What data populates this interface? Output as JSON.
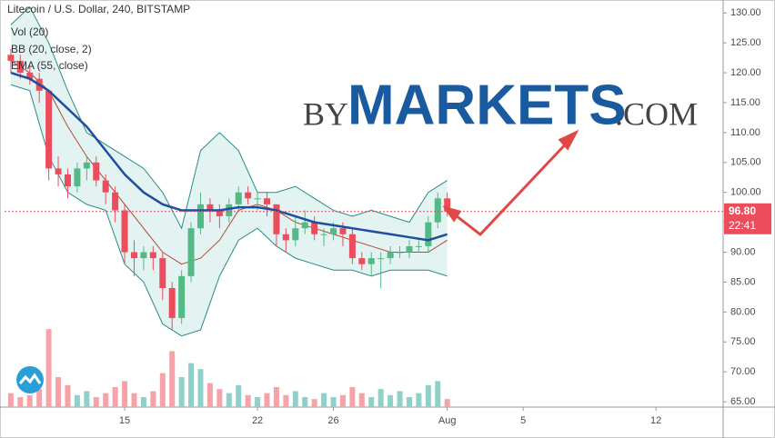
{
  "chart_data": {
    "type": "candlestick",
    "title": "Litecoin / U.S. Dollar, 240, BITSTAMP",
    "x": [
      9,
      9.5,
      10,
      10.5,
      11,
      11.5,
      12,
      12.5,
      13,
      13.5,
      14,
      14.5,
      15,
      15.5,
      16,
      16.5,
      17,
      17.5,
      18,
      18.5,
      19,
      19.5,
      20,
      20.5,
      21,
      21.5,
      22,
      22.5,
      23,
      23.5,
      24,
      24.5,
      25,
      25.5,
      26,
      26.5,
      27,
      27.5,
      28,
      28.5,
      29,
      29.5,
      30,
      30.5,
      31,
      31.5,
      32
    ],
    "open": [
      123,
      122,
      120,
      119,
      117,
      104,
      103,
      101,
      104,
      105,
      102,
      100,
      97,
      90,
      89,
      90,
      89,
      84,
      79,
      86,
      94,
      98,
      97,
      96,
      98,
      100,
      99,
      99,
      98,
      93,
      92,
      94,
      95,
      93,
      93,
      94,
      93,
      89,
      88,
      89,
      89,
      90,
      90,
      91,
      91,
      95,
      99
    ],
    "high": [
      124,
      123,
      121,
      120,
      117,
      106,
      104,
      105,
      106,
      106,
      103,
      101,
      98,
      92,
      91,
      91,
      90,
      85,
      87,
      95,
      100,
      99,
      98,
      99,
      101,
      101,
      100,
      100,
      98,
      94,
      96,
      97,
      96,
      94,
      95,
      95,
      94,
      90,
      90,
      90,
      91,
      91,
      92,
      92,
      96,
      100,
      100
    ],
    "low": [
      120,
      119,
      118,
      115,
      102,
      101,
      99,
      100,
      102,
      101,
      98,
      95,
      88,
      86,
      87,
      87,
      82,
      77,
      78,
      85,
      93,
      95,
      94,
      95,
      97,
      98,
      97,
      96,
      91,
      90,
      91,
      93,
      92,
      91,
      92,
      91,
      88,
      87,
      86,
      84,
      88,
      89,
      89,
      90,
      90,
      94,
      96
    ],
    "close": [
      122,
      120,
      119,
      117,
      104,
      103,
      101,
      104,
      105,
      102,
      100,
      97,
      90,
      89,
      90,
      89,
      84,
      79,
      86,
      94,
      98,
      97,
      96,
      98,
      100,
      99,
      99,
      98,
      93,
      92,
      94,
      95,
      93,
      93,
      94,
      93,
      89,
      88,
      89,
      89,
      90,
      90,
      91,
      91,
      95,
      99,
      96.8
    ],
    "up_color": "#53b987",
    "down_color": "#eb4d5c",
    "volume": {
      "name": "Vol (20)",
      "values": [
        14,
        10,
        12,
        18,
        78,
        30,
        22,
        12,
        16,
        10,
        14,
        20,
        26,
        14,
        10,
        16,
        34,
        56,
        30,
        44,
        38,
        24,
        18,
        14,
        22,
        12,
        10,
        14,
        20,
        12,
        16,
        10,
        8,
        14,
        10,
        12,
        20,
        14,
        10,
        18,
        12,
        16,
        10,
        14,
        22,
        26,
        8
      ],
      "ylim": [
        0,
        100
      ],
      "up_color": "#8fd0c8",
      "down_color": "#f5a3a8"
    },
    "bb": {
      "name": "BB (20, close, 2)",
      "x": [
        9,
        10,
        11,
        12,
        13,
        14,
        15,
        16,
        17,
        18,
        19,
        20,
        21,
        22,
        23,
        24,
        25,
        26,
        27,
        28,
        29,
        30,
        31,
        32
      ],
      "upper": [
        128,
        131,
        125,
        117,
        110,
        108,
        106,
        104,
        100,
        94,
        107,
        110,
        107,
        100,
        100,
        101,
        99,
        97,
        96,
        97,
        96,
        95,
        100,
        102
      ],
      "basis": [
        122,
        120,
        117,
        111,
        106,
        102,
        98,
        94,
        90,
        88,
        89,
        92,
        97,
        98,
        97,
        95,
        94,
        93,
        92,
        91,
        90,
        90,
        90,
        92
      ],
      "lower": [
        118,
        117,
        106,
        100,
        98,
        97,
        88,
        85,
        78,
        76,
        77,
        86,
        92,
        94,
        91,
        89,
        88,
        87,
        87,
        86,
        87,
        87,
        87,
        86
      ],
      "color": "#2a8a8a",
      "basis_color": "#b04a3a",
      "fill": "#e3f3f1"
    },
    "ema": {
      "name": "EMA (55, close)",
      "x": [
        9,
        10,
        11,
        12,
        13,
        14,
        15,
        16,
        17,
        18,
        19,
        20,
        21,
        22,
        23,
        24,
        25,
        26,
        27,
        28,
        29,
        30,
        31,
        32
      ],
      "values": [
        120,
        119,
        117,
        114,
        111,
        107,
        103,
        100,
        98,
        97,
        97,
        97,
        97.5,
        97.5,
        97,
        96,
        95,
        94.5,
        94,
        93.5,
        93,
        92.5,
        92,
        93
      ],
      "color": "#1f4e9e"
    },
    "last_price": {
      "value": 96.8,
      "label": "96.80"
    },
    "countdown": "22:41",
    "watermark": {
      "prefix": "BY",
      "brand": "MARKETS",
      "suffix": ".COM"
    },
    "xlim": [
      8.67,
      46.54
    ],
    "ylim": [
      64.1,
      131.1
    ],
    "xticks": [
      15,
      22,
      26,
      {
        "value": 32,
        "label": "Aug"
      },
      {
        "value": 36,
        "label": "5"
      },
      {
        "value": 43,
        "label": "12"
      }
    ],
    "yticks": [
      {
        "value": 65,
        "label": "65.00"
      },
      {
        "value": 70,
        "label": "70.00"
      },
      {
        "value": 75,
        "label": "75.00"
      },
      {
        "value": 80,
        "label": "80.00"
      },
      {
        "value": 85,
        "label": "85.00"
      },
      {
        "value": 90,
        "label": "90.00"
      },
      {
        "value": 95,
        "label": "95.00"
      },
      {
        "value": 100,
        "label": "100.00"
      },
      {
        "value": 105,
        "label": "105.00"
      },
      {
        "value": 110,
        "label": "110.00"
      },
      {
        "value": 115,
        "label": "115.00"
      },
      {
        "value": 120,
        "label": "120.00"
      },
      {
        "value": 125,
        "label": "125.00"
      },
      {
        "value": 130,
        "label": "130.00"
      }
    ]
  }
}
